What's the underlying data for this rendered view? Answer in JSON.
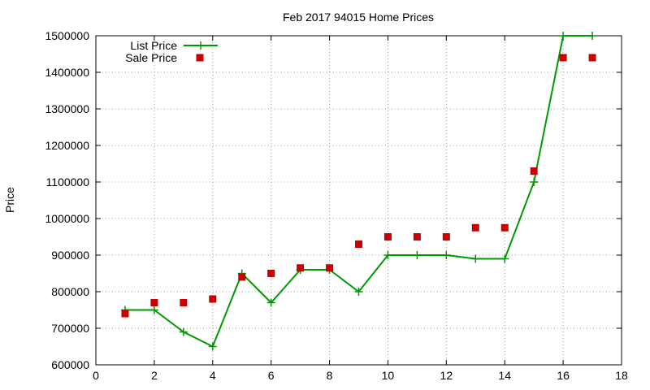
{
  "chart_data": {
    "type": "line",
    "title": "Feb 2017 94015 Home Prices",
    "xlabel": "",
    "ylabel": "Price",
    "xlim": [
      0,
      18
    ],
    "ylim": [
      600000,
      1500000
    ],
    "x_ticks": [
      "0",
      "2",
      "4",
      "6",
      "8",
      "10",
      "12",
      "14",
      "16",
      "18"
    ],
    "y_ticks": [
      "600000",
      "700000",
      "800000",
      "900000",
      "1000000",
      "1100000",
      "1200000",
      "1300000",
      "1400000",
      "1500000"
    ],
    "grid": true,
    "legend_position": "top-left",
    "series": [
      {
        "name": "List Price",
        "style": "linespoints",
        "color": "#009900",
        "x": [
          1,
          2,
          3,
          4,
          5,
          6,
          7,
          8,
          9,
          10,
          11,
          12,
          13,
          14,
          15,
          16,
          17
        ],
        "y": [
          750000,
          750000,
          690000,
          650000,
          850000,
          770000,
          860000,
          860000,
          800000,
          900000,
          900000,
          900000,
          890000,
          890000,
          1100000,
          1500000,
          1500000
        ]
      },
      {
        "name": "Sale Price",
        "style": "points",
        "color": "#cc0000",
        "x": [
          1,
          2,
          3,
          4,
          5,
          6,
          7,
          8,
          9,
          10,
          11,
          12,
          13,
          14,
          15,
          16,
          17
        ],
        "y": [
          740000,
          770000,
          770000,
          780000,
          840000,
          850000,
          865000,
          865000,
          930000,
          950000,
          950000,
          950000,
          975000,
          975000,
          1130000,
          1440000,
          1440000
        ]
      }
    ]
  }
}
